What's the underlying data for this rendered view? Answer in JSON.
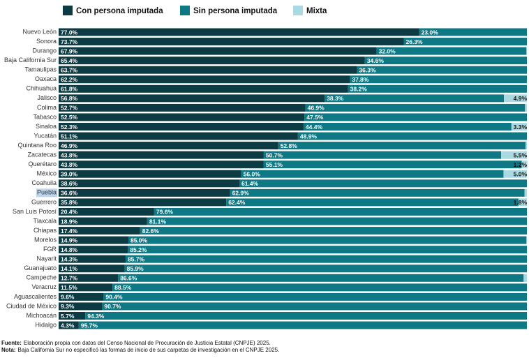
{
  "chart_data": {
    "type": "stacked-bar-horizontal",
    "categories": [
      "Nuevo León",
      "Sonora",
      "Durango",
      "Baja California Sur",
      "Tamaulipas",
      "Oaxaca",
      "Chihuahua",
      "Jalisco",
      "Colima",
      "Tabasco",
      "Sinaloa",
      "Yucatán",
      "Quintana Roo",
      "Zacatecas",
      "Querétaro",
      "México",
      "Coahuila",
      "Puebla",
      "Guerrero",
      "San Luis Potosí",
      "Tlaxcala",
      "Chiapas",
      "Morelos",
      "FGR",
      "Nayarit",
      "Guanajuato",
      "Campeche",
      "Veracruz",
      "Aguascalientes",
      "Ciudad de México",
      "Michoacán",
      "Hidalgo"
    ],
    "series": [
      {
        "name": "Con persona imputada",
        "color": "#0d3b44",
        "values": [
          77.0,
          73.7,
          67.9,
          65.4,
          63.7,
          62.2,
          61.8,
          56.8,
          52.7,
          52.5,
          52.3,
          51.1,
          46.9,
          43.8,
          43.8,
          39.0,
          38.6,
          36.6,
          35.8,
          20.4,
          18.9,
          17.4,
          14.9,
          14.8,
          14.3,
          14.1,
          12.7,
          11.5,
          9.6,
          9.3,
          5.7,
          4.3
        ],
        "value_labels": [
          "77.0%",
          "73.7%",
          "67.9%",
          "65.4%",
          "63.7%",
          "62.2%",
          "61.8%",
          "56.8%",
          "52.7%",
          "52.5%",
          "52.3%",
          "51.1%",
          "46.9%",
          "43.8%",
          "43.8%",
          "39.0%",
          "38.6%",
          "36.6%",
          "35.8%",
          "20.4%",
          "18.9%",
          "17.4%",
          "14.9%",
          "14.8%",
          "14.3%",
          "14.1%",
          "12.7%",
          "11.5%",
          "9.6%",
          "9.3%",
          "5.7%",
          "4.3%"
        ]
      },
      {
        "name": "Sin persona imputada",
        "color": "#0e7884",
        "values": [
          23.0,
          26.3,
          32.0,
          34.6,
          36.3,
          37.8,
          38.2,
          38.3,
          46.9,
          47.5,
          44.4,
          48.9,
          52.8,
          50.7,
          55.1,
          56.0,
          61.4,
          62.9,
          62.4,
          79.6,
          81.1,
          82.6,
          85.0,
          85.2,
          85.7,
          85.9,
          86.6,
          88.5,
          90.4,
          90.7,
          94.3,
          95.7
        ],
        "value_labels": [
          "23.0%",
          "26.3%",
          "32.0%",
          "34.6%",
          "36.3%",
          "37.8%",
          "38.2%",
          "38.3%",
          "46.9%",
          "47.5%",
          "44.4%",
          "48.9%",
          "52.8%",
          "50.7%",
          "55.1%",
          "56.0%",
          "61.4%",
          "62.9%",
          "62.4%",
          "79.6%",
          "81.1%",
          "82.6%",
          "85.0%",
          "85.2%",
          "85.7%",
          "85.9%",
          "86.6%",
          "88.5%",
          "90.4%",
          "90.7%",
          "94.3%",
          "95.7%"
        ]
      },
      {
        "name": "Mixta",
        "color": "#a9d9e1",
        "values": [
          0,
          0,
          0.1,
          0,
          0,
          0,
          0,
          4.9,
          0.4,
          0,
          3.3,
          0,
          0.3,
          5.5,
          1.2,
          5.0,
          0,
          0.5,
          1.8,
          0,
          0,
          0,
          0.1,
          0,
          0,
          0,
          0.7,
          0,
          0,
          0,
          0,
          0
        ],
        "value_labels": [
          null,
          null,
          null,
          null,
          null,
          null,
          null,
          "4.9%",
          null,
          null,
          "3.3%",
          null,
          null,
          "5.5%",
          "1.2%",
          "5.0%",
          null,
          null,
          "1.8%",
          null,
          null,
          null,
          null,
          null,
          null,
          null,
          null,
          null,
          null,
          null,
          null,
          null
        ]
      }
    ],
    "xlim": [
      0,
      100
    ],
    "footnotes": [
      {
        "label": "Fuente:",
        "text": "Elaboración propia con datos del Censo Nacional de Procuración de Justicia Estatal (CNPJE) 2025."
      },
      {
        "label": "Nota:",
        "text": "Baja California Sur no especificó las formas de inicio de sus carpetas de investigación en el CNPJE 2025."
      }
    ]
  }
}
